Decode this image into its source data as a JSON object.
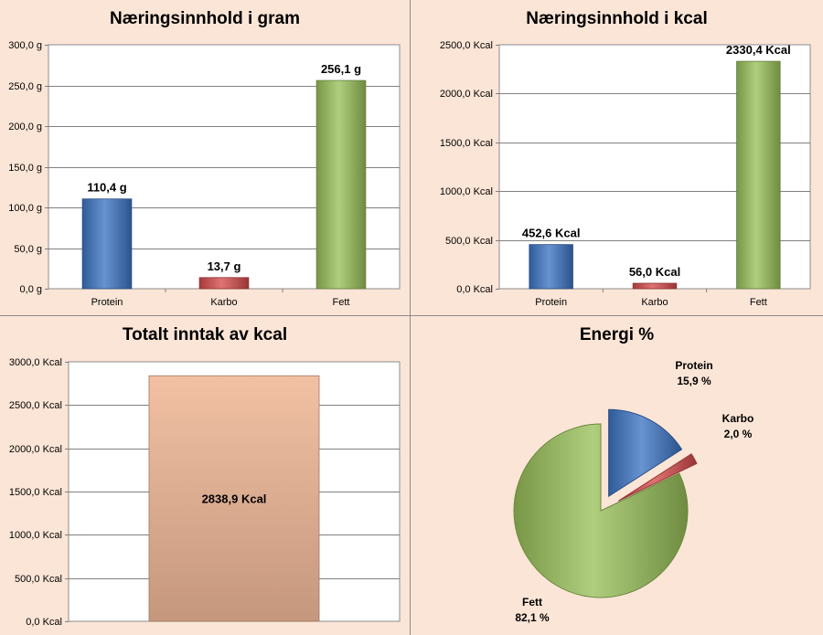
{
  "colors": {
    "background": "#fbe5d6",
    "protein": "#3c75c4",
    "karbo": "#d64b4b",
    "fett": "#9ac25a",
    "total": "#f0b898"
  },
  "charts": {
    "grams": {
      "title": "Næringsinnhold i gram"
    },
    "kcal": {
      "title": "Næringsinnhold i kcal"
    },
    "total": {
      "title": "Totalt inntak av kcal"
    },
    "energy": {
      "title": "Energi %"
    }
  },
  "chart_data": [
    {
      "type": "bar",
      "title": "Næringsinnhold i gram",
      "categories": [
        "Protein",
        "Karbo",
        "Fett"
      ],
      "values": [
        110.4,
        13.7,
        256.1
      ],
      "data_labels": [
        "110,4 g",
        "13,7 g",
        "256,1 g"
      ],
      "colors": [
        "#3c75c4",
        "#d64b4b",
        "#9ac25a"
      ],
      "ylim": [
        0,
        300
      ],
      "yticks": [
        0,
        50,
        100,
        150,
        200,
        250,
        300
      ],
      "ytick_labels": [
        "0,0 g",
        "50,0 g",
        "100,0 g",
        "150,0 g",
        "200,0 g",
        "250,0 g",
        "300,0 g"
      ],
      "grid": true
    },
    {
      "type": "bar",
      "title": "Næringsinnhold i kcal",
      "categories": [
        "Protein",
        "Karbo",
        "Fett"
      ],
      "values": [
        452.6,
        56.0,
        2330.4
      ],
      "data_labels": [
        "452,6 Kcal",
        "56,0 Kcal",
        "2330,4 Kcal"
      ],
      "colors": [
        "#3c75c4",
        "#d64b4b",
        "#9ac25a"
      ],
      "ylim": [
        0,
        2500
      ],
      "yticks": [
        0,
        500,
        1000,
        1500,
        2000,
        2500
      ],
      "ytick_labels": [
        "0,0 Kcal",
        "500,0 Kcal",
        "1000,0 Kcal",
        "1500,0 Kcal",
        "2000,0 Kcal",
        "2500,0 Kcal"
      ],
      "grid": true
    },
    {
      "type": "bar",
      "title": "Totalt inntak av kcal",
      "categories": [
        ""
      ],
      "values": [
        2838.9
      ],
      "data_labels": [
        "2838,9 Kcal"
      ],
      "colors": [
        "#f0b898"
      ],
      "ylim": [
        0,
        3000
      ],
      "yticks": [
        0,
        500,
        1000,
        1500,
        2000,
        2500,
        3000
      ],
      "ytick_labels": [
        "0,0 Kcal",
        "500,0 Kcal",
        "1000,0 Kcal",
        "1500,0 Kcal",
        "2000,0 Kcal",
        "2500,0 Kcal",
        "3000,0 Kcal"
      ],
      "grid": true
    },
    {
      "type": "pie",
      "title": "Energi %",
      "categories": [
        "Protein",
        "Karbo",
        "Fett"
      ],
      "values": [
        15.9,
        2.0,
        82.1
      ],
      "data_labels": [
        "15,9 %",
        "2,0 %",
        "82,1 %"
      ],
      "colors": [
        "#3c75c4",
        "#d64b4b",
        "#9ac25a"
      ],
      "exploded": true
    }
  ]
}
